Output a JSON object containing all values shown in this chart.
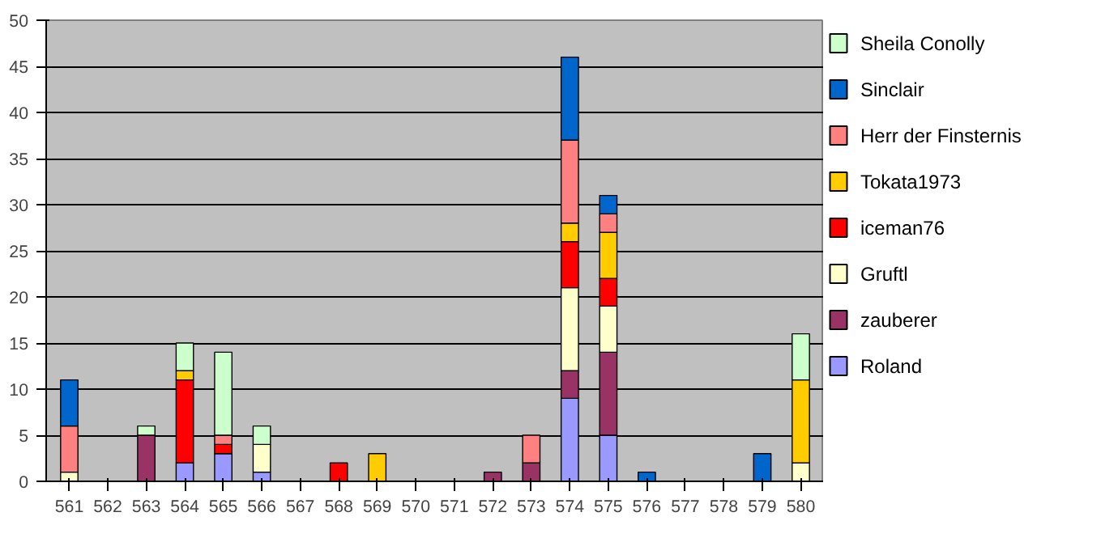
{
  "chart_data": {
    "type": "bar",
    "stacked": true,
    "categories": [
      "561",
      "562",
      "563",
      "564",
      "565",
      "566",
      "567",
      "568",
      "569",
      "570",
      "571",
      "572",
      "573",
      "574",
      "575",
      "576",
      "577",
      "578",
      "579",
      "580"
    ],
    "ylim": [
      0,
      50
    ],
    "yticks": [
      0,
      5,
      10,
      15,
      20,
      25,
      30,
      35,
      40,
      45,
      50
    ],
    "grid": "y",
    "legend": "right",
    "series": [
      {
        "name": "Roland",
        "color": "#9999ff",
        "values": [
          0,
          0,
          0,
          2,
          3,
          1,
          0,
          0,
          0,
          0,
          0,
          0,
          0,
          9,
          5,
          0,
          0,
          0,
          0,
          0
        ]
      },
      {
        "name": "zauberer",
        "color": "#993366",
        "values": [
          0,
          0,
          5,
          0,
          0,
          0,
          0,
          0,
          0,
          0,
          0,
          1,
          2,
          3,
          9,
          0,
          0,
          0,
          0,
          0
        ]
      },
      {
        "name": "Gruftl",
        "color": "#ffffcc",
        "values": [
          1,
          0,
          0,
          0,
          0,
          3,
          0,
          0,
          0,
          0,
          0,
          0,
          0,
          9,
          5,
          0,
          0,
          0,
          0,
          2
        ]
      },
      {
        "name": "iceman76",
        "color": "#ff0000",
        "values": [
          0,
          0,
          0,
          9,
          1,
          0,
          0,
          2,
          0,
          0,
          0,
          0,
          0,
          5,
          3,
          0,
          0,
          0,
          0,
          0
        ]
      },
      {
        "name": "Tokata1973",
        "color": "#ffcc00",
        "values": [
          0,
          0,
          0,
          1,
          0,
          0,
          0,
          0,
          3,
          0,
          0,
          0,
          0,
          2,
          5,
          0,
          0,
          0,
          0,
          9
        ]
      },
      {
        "name": "Herr der Finsternis",
        "color": "#ff8080",
        "values": [
          5,
          0,
          0,
          0,
          1,
          0,
          0,
          0,
          0,
          0,
          0,
          0,
          3,
          9,
          2,
          0,
          0,
          0,
          0,
          0
        ]
      },
      {
        "name": "Sinclair",
        "color": "#0066cc",
        "values": [
          5,
          0,
          0,
          0,
          0,
          0,
          0,
          0,
          0,
          0,
          0,
          0,
          0,
          9,
          2,
          1,
          0,
          0,
          3,
          0
        ]
      },
      {
        "name": "Sheila Conolly",
        "color": "#ccffcc",
        "values": [
          0,
          0,
          1,
          3,
          9,
          2,
          0,
          0,
          0,
          0,
          0,
          0,
          0,
          0,
          0,
          0,
          0,
          0,
          0,
          5
        ]
      }
    ]
  }
}
